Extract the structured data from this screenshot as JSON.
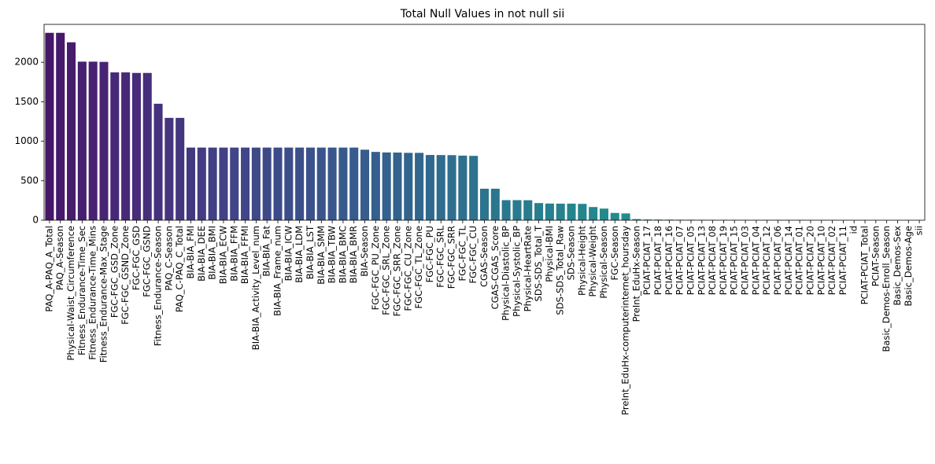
{
  "chart_data": {
    "type": "bar",
    "title": "Total Null Values in not null sii",
    "xlabel": "",
    "ylabel": "",
    "ylim": [
      0,
      2480
    ],
    "yticks": [
      0,
      500,
      1000,
      1500,
      2000
    ],
    "grid": false,
    "legend": "none",
    "palette": "viridis",
    "categories": [
      "PAQ_A-PAQ_A_Total",
      "PAQ_A-Season",
      "Physical-Waist_Circumference",
      "Fitness_Endurance-Time_Sec",
      "Fitness_Endurance-Time_Mins",
      "Fitness_Endurance-Max_Stage",
      "FGC-FGC_GSD_Zone",
      "FGC-FGC_GSND_Zone",
      "FGC-FGC_GSD",
      "FGC-FGC_GSND",
      "Fitness_Endurance-Season",
      "PAQ_C-Season",
      "PAQ_C-PAQ_C_Total",
      "BIA-BIA_FMI",
      "BIA-BIA_DEE",
      "BIA-BIA_BMI",
      "BIA-BIA_ECW",
      "BIA-BIA_FFM",
      "BIA-BIA_FFMI",
      "BIA-BIA_Activity_Level_num",
      "BIA-BIA_Fat",
      "BIA-BIA_Frame_num",
      "BIA-BIA_ICW",
      "BIA-BIA_LDM",
      "BIA-BIA_LST",
      "BIA-BIA_SMM",
      "BIA-BIA_TBW",
      "BIA-BIA_BMC",
      "BIA-BIA_BMR",
      "BIA-Season",
      "FGC-FGC_PU_Zone",
      "FGC-FGC_SRL_Zone",
      "FGC-FGC_SRR_Zone",
      "FGC-FGC_CU_Zone",
      "FGC-FGC_TL_Zone",
      "FGC-FGC_PU",
      "FGC-FGC_SRL",
      "FGC-FGC_SRR",
      "FGC-FGC_TL",
      "FGC-FGC_CU",
      "CGAS-Season",
      "CGAS-CGAS_Score",
      "Physical-Diastolic_BP",
      "Physical-Systolic_BP",
      "Physical-HeartRate",
      "SDS-SDS_Total_T",
      "Physical-BMI",
      "SDS-SDS_Total_Raw",
      "SDS-Season",
      "Physical-Height",
      "Physical-Weight",
      "Physical-Season",
      "FGC-Season",
      "PreInt_EduHx-computerinternet_hoursday",
      "PreInt_EduHx-Season",
      "PCIAT-PCIAT_17",
      "PCIAT-PCIAT_18",
      "PCIAT-PCIAT_16",
      "PCIAT-PCIAT_07",
      "PCIAT-PCIAT_05",
      "PCIAT-PCIAT_13",
      "PCIAT-PCIAT_08",
      "PCIAT-PCIAT_19",
      "PCIAT-PCIAT_15",
      "PCIAT-PCIAT_03",
      "PCIAT-PCIAT_04",
      "PCIAT-PCIAT_12",
      "PCIAT-PCIAT_06",
      "PCIAT-PCIAT_14",
      "PCIAT-PCIAT_01",
      "PCIAT-PCIAT_20",
      "PCIAT-PCIAT_10",
      "PCIAT-PCIAT_02",
      "PCIAT-PCIAT_11",
      "id",
      "PCIAT-PCIAT_Total",
      "PCIAT-Season",
      "Basic_Demos-Enroll_Season",
      "Basic_Demos-Sex",
      "Basic_Demos-Age",
      "sii"
    ],
    "values": [
      2373,
      2373,
      2253,
      2008,
      2008,
      2005,
      1872,
      1872,
      1865,
      1865,
      1475,
      1296,
      1296,
      920,
      920,
      920,
      920,
      920,
      920,
      920,
      920,
      920,
      920,
      920,
      920,
      920,
      920,
      920,
      920,
      893,
      865,
      858,
      857,
      853,
      853,
      826,
      825,
      824,
      818,
      815,
      399,
      399,
      254,
      254,
      253,
      217,
      211,
      210,
      210,
      207,
      167,
      147,
      92,
      86,
      14,
      9,
      8,
      7,
      6,
      6,
      5,
      5,
      5,
      5,
      4,
      4,
      4,
      4,
      4,
      4,
      2,
      2,
      2,
      1,
      0,
      0,
      0,
      0,
      0,
      0,
      0
    ]
  }
}
